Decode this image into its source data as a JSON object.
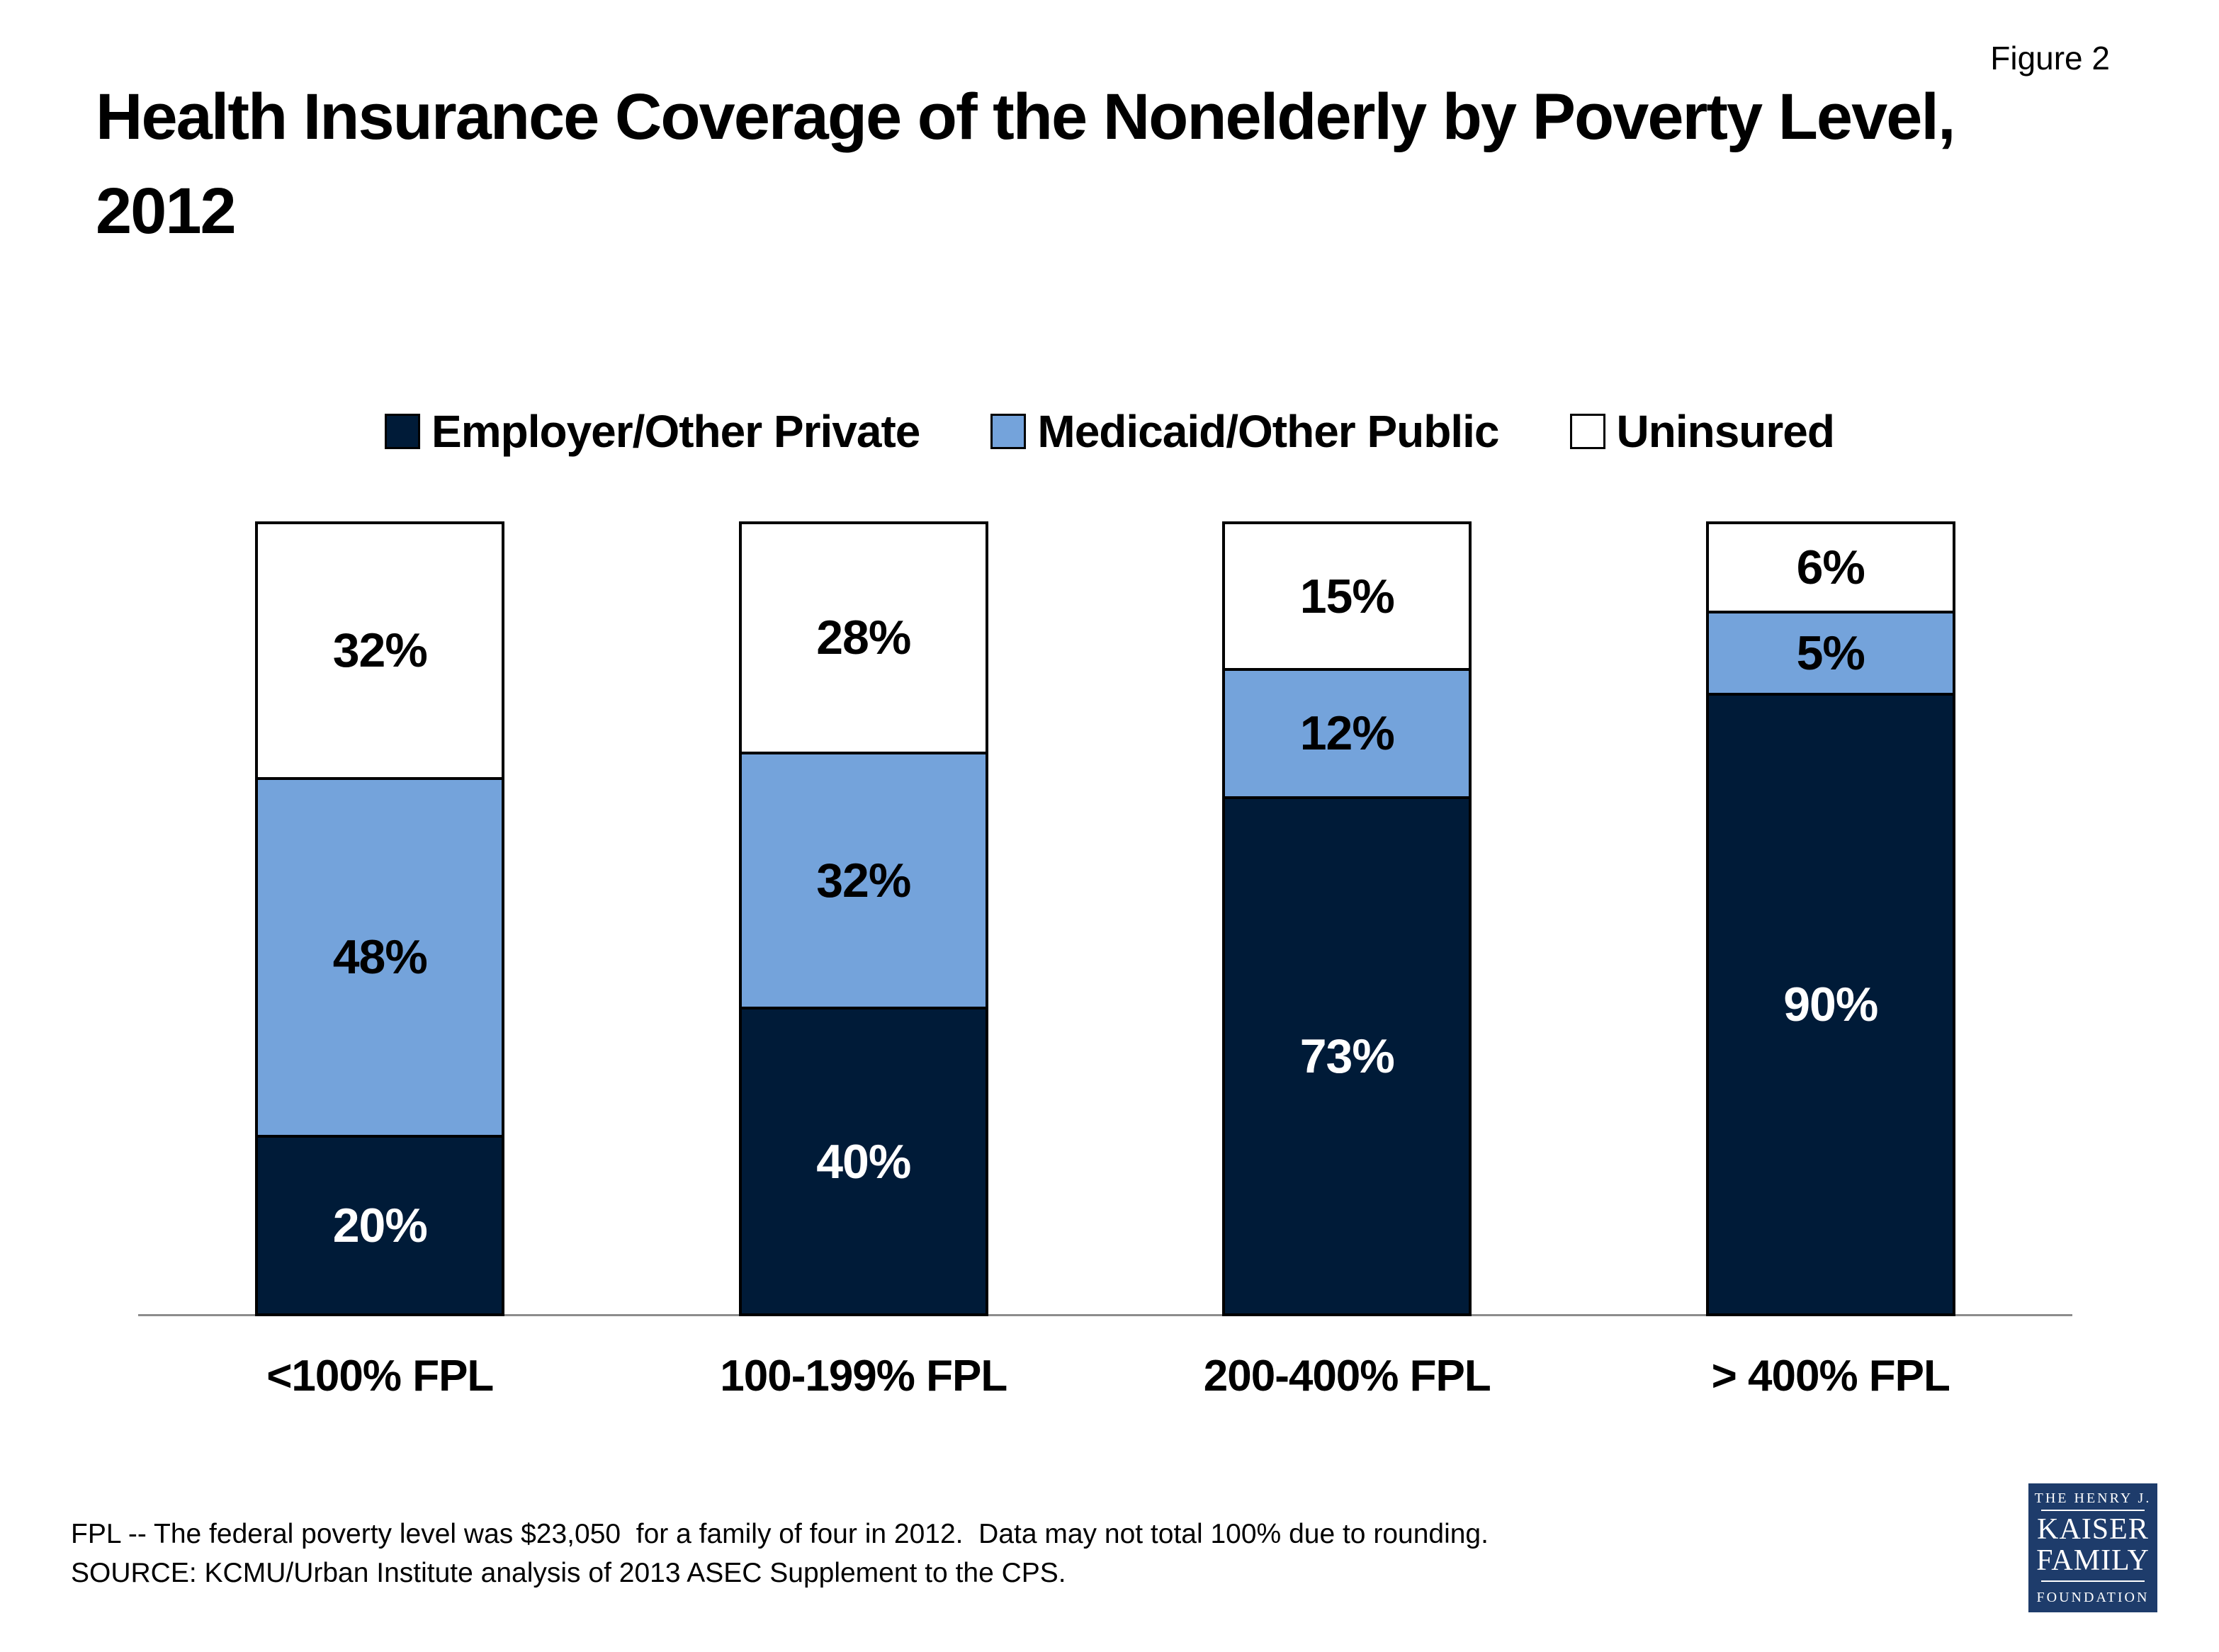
{
  "figure_label": "Figure 2",
  "title": {
    "line1": "Health Insurance Coverage of the Nonelderly by Poverty Level,",
    "line2": "2012"
  },
  "chart_data": {
    "type": "bar",
    "stacked": true,
    "orientation": "vertical",
    "categories": [
      "<100% FPL",
      "100-199% FPL",
      "200-400% FPL",
      "> 400% FPL"
    ],
    "series": [
      {
        "name": "Employer/Other Private",
        "color": "#001B38",
        "label_color": "#FFFFFF",
        "values": [
          20,
          40,
          73,
          90
        ]
      },
      {
        "name": "Medicaid/Other Public",
        "color": "#74A3DB",
        "label_color": "#000000",
        "values": [
          48,
          32,
          12,
          5
        ]
      },
      {
        "name": "Uninsured",
        "color": "#FFFFFF",
        "label_color": "#000000",
        "values": [
          32,
          28,
          15,
          6
        ]
      }
    ],
    "stack_order_top_to_bottom": [
      "Uninsured",
      "Medicaid/Other Public",
      "Employer/Other Private"
    ],
    "value_suffix": "%",
    "ylim": [
      0,
      100
    ],
    "grid": false,
    "y_axis_visible": false,
    "legend_position": "top"
  },
  "colors": {
    "employer_navy": "#001B38",
    "medicaid_blue": "#74A3DB",
    "uninsured_white": "#FFFFFF",
    "bar_border": "#000000",
    "swatch_border": "#000000",
    "axis_line": "#8C8C8C",
    "logo_background": "#1E3C6B",
    "logo_text": "#FFFFFF"
  },
  "footnotes": {
    "line1": "FPL -- The federal poverty level was $23,050  for a family of four in 2012.  Data may not total 100% due to rounding.",
    "line2": "SOURCE: KCMU/Urban Institute analysis of 2013 ASEC Supplement to the CPS."
  },
  "logo": {
    "line1": "THE HENRY J.",
    "line2": "KAISER",
    "line3": "FAMILY",
    "line4": "FOUNDATION"
  }
}
